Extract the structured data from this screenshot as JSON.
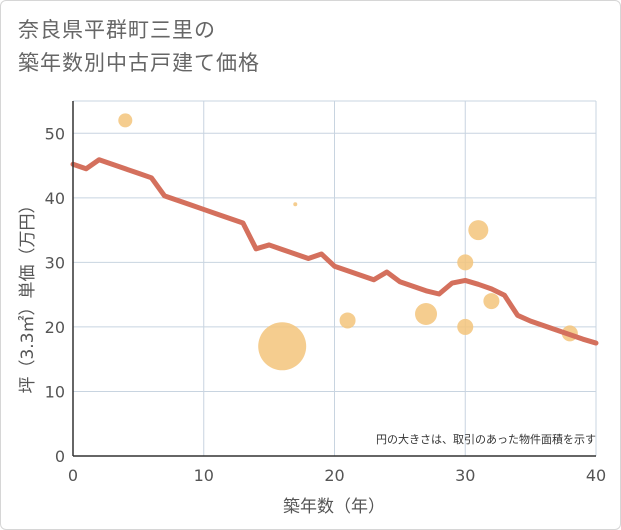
{
  "title_lines": [
    "奈良県平群町三里の",
    "築年数別中古戸建て価格"
  ],
  "chart_data": {
    "type": "scatter",
    "xlabel": "築年数（年）",
    "ylabel": "坪（3.3㎡）単価（万円）",
    "xlim": [
      0,
      40
    ],
    "ylim": [
      0,
      55
    ],
    "xticks": [
      0,
      10,
      20,
      30,
      40
    ],
    "yticks": [
      0,
      10,
      20,
      30,
      40,
      50
    ],
    "grid": true,
    "note": "円の大きさは、取引のあった物件面積を示す",
    "colors": {
      "line": "#d4705d",
      "bubble": "#f3c47b",
      "grid": "#c8d4e0",
      "axis": "#333333"
    },
    "line_series": {
      "x": [
        0,
        1,
        2,
        3,
        4,
        5,
        6,
        7,
        8,
        9,
        10,
        11,
        12,
        13,
        14,
        15,
        16,
        17,
        18,
        19,
        20,
        21,
        22,
        23,
        24,
        25,
        26,
        27,
        28,
        29,
        30,
        31,
        32,
        33,
        34,
        35,
        36,
        37,
        38,
        39,
        40
      ],
      "y": [
        45.2,
        44.5,
        45.9,
        45.2,
        44.5,
        43.8,
        43.1,
        40.3,
        39.6,
        38.9,
        38.2,
        37.5,
        36.8,
        36.1,
        32.1,
        32.7,
        32.0,
        31.3,
        30.6,
        31.3,
        29.4,
        28.7,
        28.0,
        27.3,
        28.5,
        27.0,
        26.3,
        25.6,
        25.1,
        26.8,
        27.2,
        26.6,
        25.9,
        24.9,
        21.8,
        20.9,
        20.2,
        19.5,
        18.8,
        18.1,
        17.5
      ]
    },
    "bubbles": [
      {
        "x": 4,
        "y": 52,
        "size": 7
      },
      {
        "x": 17,
        "y": 39,
        "size": 2
      },
      {
        "x": 16,
        "y": 17,
        "size": 24
      },
      {
        "x": 21,
        "y": 21,
        "size": 8
      },
      {
        "x": 27,
        "y": 22,
        "size": 11
      },
      {
        "x": 30,
        "y": 30,
        "size": 8
      },
      {
        "x": 30,
        "y": 20,
        "size": 8
      },
      {
        "x": 31,
        "y": 35,
        "size": 10
      },
      {
        "x": 32,
        "y": 24,
        "size": 8
      },
      {
        "x": 38,
        "y": 19,
        "size": 8
      }
    ]
  }
}
